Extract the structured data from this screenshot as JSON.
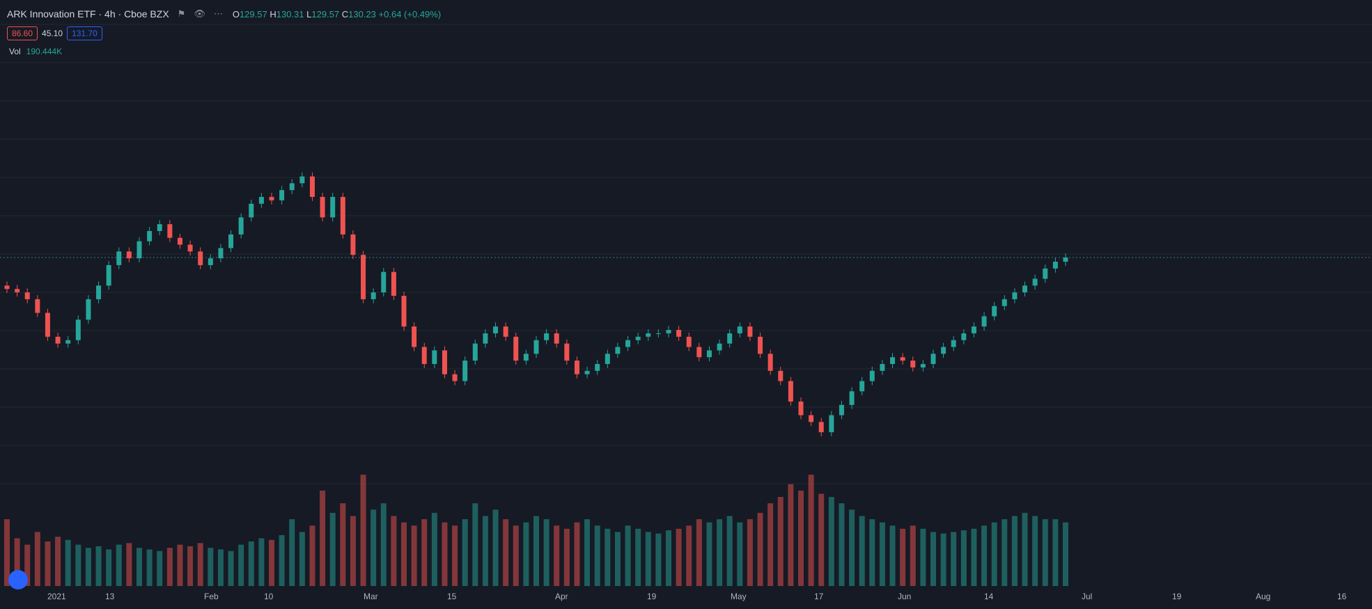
{
  "header": {
    "title": "ARK Innovation ETF · 4h · Cboe BZX",
    "ohlc": {
      "open_label": "O",
      "open_value": "129.57",
      "high_label": "H",
      "high_value": "130.31",
      "low_label": "L",
      "low_value": "129.57",
      "close_label": "C",
      "close_value": "130.23",
      "change": "+0.64 (+0.49%)"
    },
    "prices": {
      "a": "86.60",
      "b": "45.10",
      "c": "131.70"
    },
    "volume_label": "Vol",
    "volume_value": "190.444K"
  },
  "x_labels": [
    "2021",
    "13",
    "Feb",
    "10",
    "Mar",
    "15",
    "Apr",
    "19",
    "May",
    "17",
    "Jun",
    "14",
    "Jul",
    "19",
    "Aug",
    "16"
  ],
  "colors": {
    "up": "#26a69a",
    "down": "#ef5350",
    "grid": "#232834",
    "bg": "#161a25"
  },
  "chart_data": {
    "type": "candlestick",
    "timeframe": "4h",
    "close_series": [
      121,
      120,
      118,
      114,
      107,
      105,
      106,
      112,
      118,
      122,
      128,
      132,
      130,
      135,
      138,
      140,
      136,
      134,
      132,
      128,
      130,
      133,
      137,
      142,
      146,
      148,
      147,
      150,
      152,
      154,
      148,
      142,
      148,
      137,
      131,
      118,
      120,
      126,
      119,
      110,
      104,
      99,
      103,
      96,
      94,
      100,
      105,
      108,
      110,
      107,
      100,
      102,
      106,
      108,
      105,
      100,
      96,
      97,
      99,
      102,
      104,
      106,
      107,
      108,
      108,
      109,
      107,
      104,
      101,
      103,
      105,
      108,
      110,
      107,
      102,
      97,
      94,
      88,
      84,
      82,
      79,
      84,
      87,
      91,
      94,
      97,
      99,
      101,
      100,
      98,
      99,
      102,
      104,
      106,
      108,
      110,
      113,
      116,
      118,
      120,
      122,
      124,
      127,
      129,
      130.23
    ],
    "volume": [
      420,
      300,
      260,
      340,
      280,
      310,
      290,
      260,
      240,
      250,
      230,
      260,
      270,
      240,
      230,
      220,
      240,
      260,
      250,
      270,
      240,
      230,
      220,
      260,
      280,
      300,
      290,
      320,
      420,
      340,
      380,
      600,
      460,
      520,
      440,
      700,
      480,
      520,
      440,
      400,
      380,
      420,
      460,
      400,
      380,
      420,
      520,
      440,
      480,
      420,
      380,
      400,
      440,
      420,
      380,
      360,
      400,
      420,
      380,
      360,
      340,
      380,
      360,
      340,
      330,
      350,
      360,
      380,
      420,
      400,
      420,
      440,
      400,
      420,
      460,
      520,
      560,
      640,
      600,
      700,
      580,
      560,
      520,
      480,
      440,
      420,
      400,
      380,
      360,
      380,
      360,
      340,
      330,
      340,
      350,
      360,
      380,
      400,
      420,
      440,
      460,
      440,
      420,
      420,
      400
    ]
  }
}
